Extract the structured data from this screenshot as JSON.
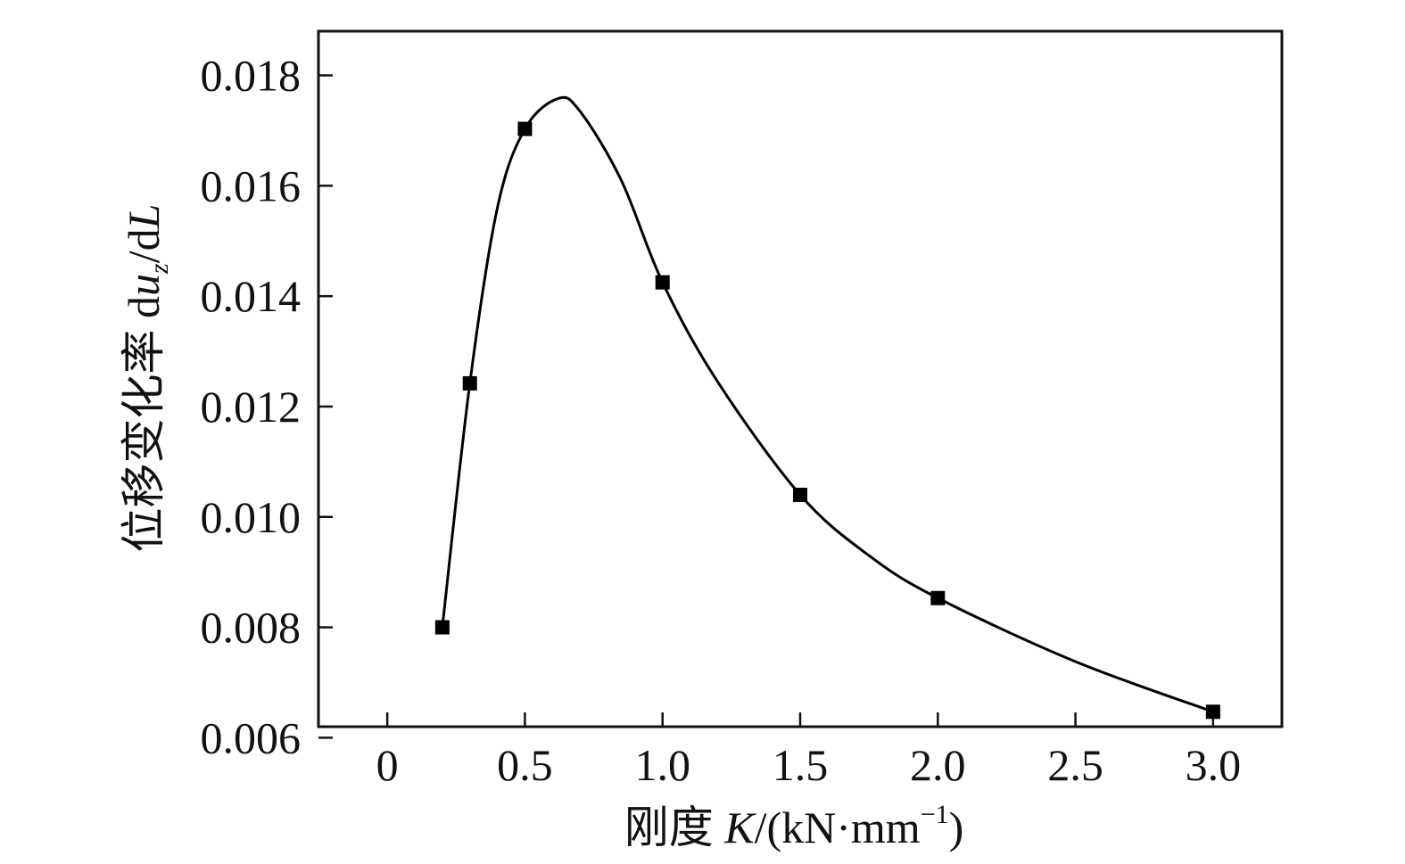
{
  "chart_data": {
    "type": "line",
    "title": "",
    "xlabel": {
      "prefix": "刚度 ",
      "var": "K",
      "unit_open": "/(kN·mm",
      "exponent": "−1",
      "unit_close": ")"
    },
    "ylabel": {
      "prefix": "位移变化率 d",
      "var": "u",
      "subscript": "z",
      "mid": "/d",
      "var2": "L"
    },
    "xlim": [
      -0.25,
      3.25
    ],
    "ylim": [
      0.0062,
      0.0188
    ],
    "xticks": [
      {
        "value": 0,
        "label": "0"
      },
      {
        "value": 0.5,
        "label": "0.5"
      },
      {
        "value": 1.0,
        "label": "1.0"
      },
      {
        "value": 1.5,
        "label": "1.5"
      },
      {
        "value": 2.0,
        "label": "2.0"
      },
      {
        "value": 2.5,
        "label": "2.5"
      },
      {
        "value": 3.0,
        "label": "3.0"
      }
    ],
    "yticks": [
      {
        "value": 0.006,
        "label": "0.006"
      },
      {
        "value": 0.008,
        "label": "0.008"
      },
      {
        "value": 0.01,
        "label": "0.010"
      },
      {
        "value": 0.012,
        "label": "0.012"
      },
      {
        "value": 0.014,
        "label": "0.014"
      },
      {
        "value": 0.016,
        "label": "0.016"
      },
      {
        "value": 0.018,
        "label": "0.018"
      }
    ],
    "grid": false,
    "series": [
      {
        "marker": "square",
        "color": "#000000",
        "points": [
          {
            "x": 0.2,
            "y": 0.008
          },
          {
            "x": 0.3,
            "y": 0.01242
          },
          {
            "x": 0.5,
            "y": 0.01703
          },
          {
            "x": 1.0,
            "y": 0.01425
          },
          {
            "x": 1.5,
            "y": 0.0104
          },
          {
            "x": 2.0,
            "y": 0.00853
          },
          {
            "x": 3.0,
            "y": 0.00647
          }
        ],
        "curve": [
          {
            "x": 0.2,
            "y": 0.008
          },
          {
            "x": 0.3,
            "y": 0.01242
          },
          {
            "x": 0.4,
            "y": 0.0156
          },
          {
            "x": 0.5,
            "y": 0.01703
          },
          {
            "x": 0.62,
            "y": 0.01758
          },
          {
            "x": 0.7,
            "y": 0.01735
          },
          {
            "x": 0.85,
            "y": 0.0161
          },
          {
            "x": 1.0,
            "y": 0.01425
          },
          {
            "x": 1.2,
            "y": 0.01245
          },
          {
            "x": 1.5,
            "y": 0.0104
          },
          {
            "x": 1.75,
            "y": 0.0093
          },
          {
            "x": 2.0,
            "y": 0.00853
          },
          {
            "x": 2.5,
            "y": 0.00738
          },
          {
            "x": 3.0,
            "y": 0.00647
          }
        ]
      }
    ]
  }
}
